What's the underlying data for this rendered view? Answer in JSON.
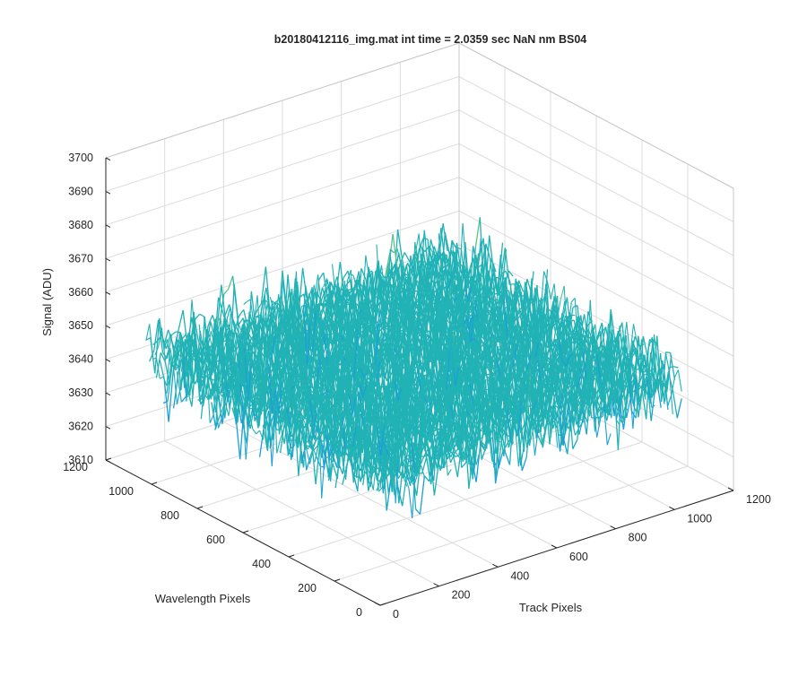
{
  "chart_data": {
    "type": "surface3d",
    "title": "b20180412116_img.mat int time = 2.0359 sec  NaN nm BS04",
    "xlabel": "Track Pixels",
    "ylabel": "Wavelength Pixels",
    "zlabel": "Signal (ADU)",
    "x_ticks": [
      "0",
      "200",
      "400",
      "600",
      "800",
      "1000",
      "1200"
    ],
    "y_ticks": [
      "0",
      "200",
      "400",
      "600",
      "800",
      "1000",
      "1200"
    ],
    "z_ticks": [
      "3610",
      "3620",
      "3630",
      "3640",
      "3650",
      "3660",
      "3670",
      "3680",
      "3690",
      "3700"
    ],
    "xlim": [
      0,
      1200
    ],
    "ylim": [
      0,
      1200
    ],
    "zlim": [
      3610,
      3700
    ],
    "data_x_extent": [
      0,
      1024
    ],
    "data_y_extent": [
      0,
      1024
    ],
    "signal_mean": 3648,
    "signal_range": [
      3605,
      3695
    ],
    "grid": true,
    "colormap": [
      "#0072BD",
      "#1A9FD8",
      "#21B2B5",
      "#5CC28A",
      "#E8B43A"
    ]
  }
}
